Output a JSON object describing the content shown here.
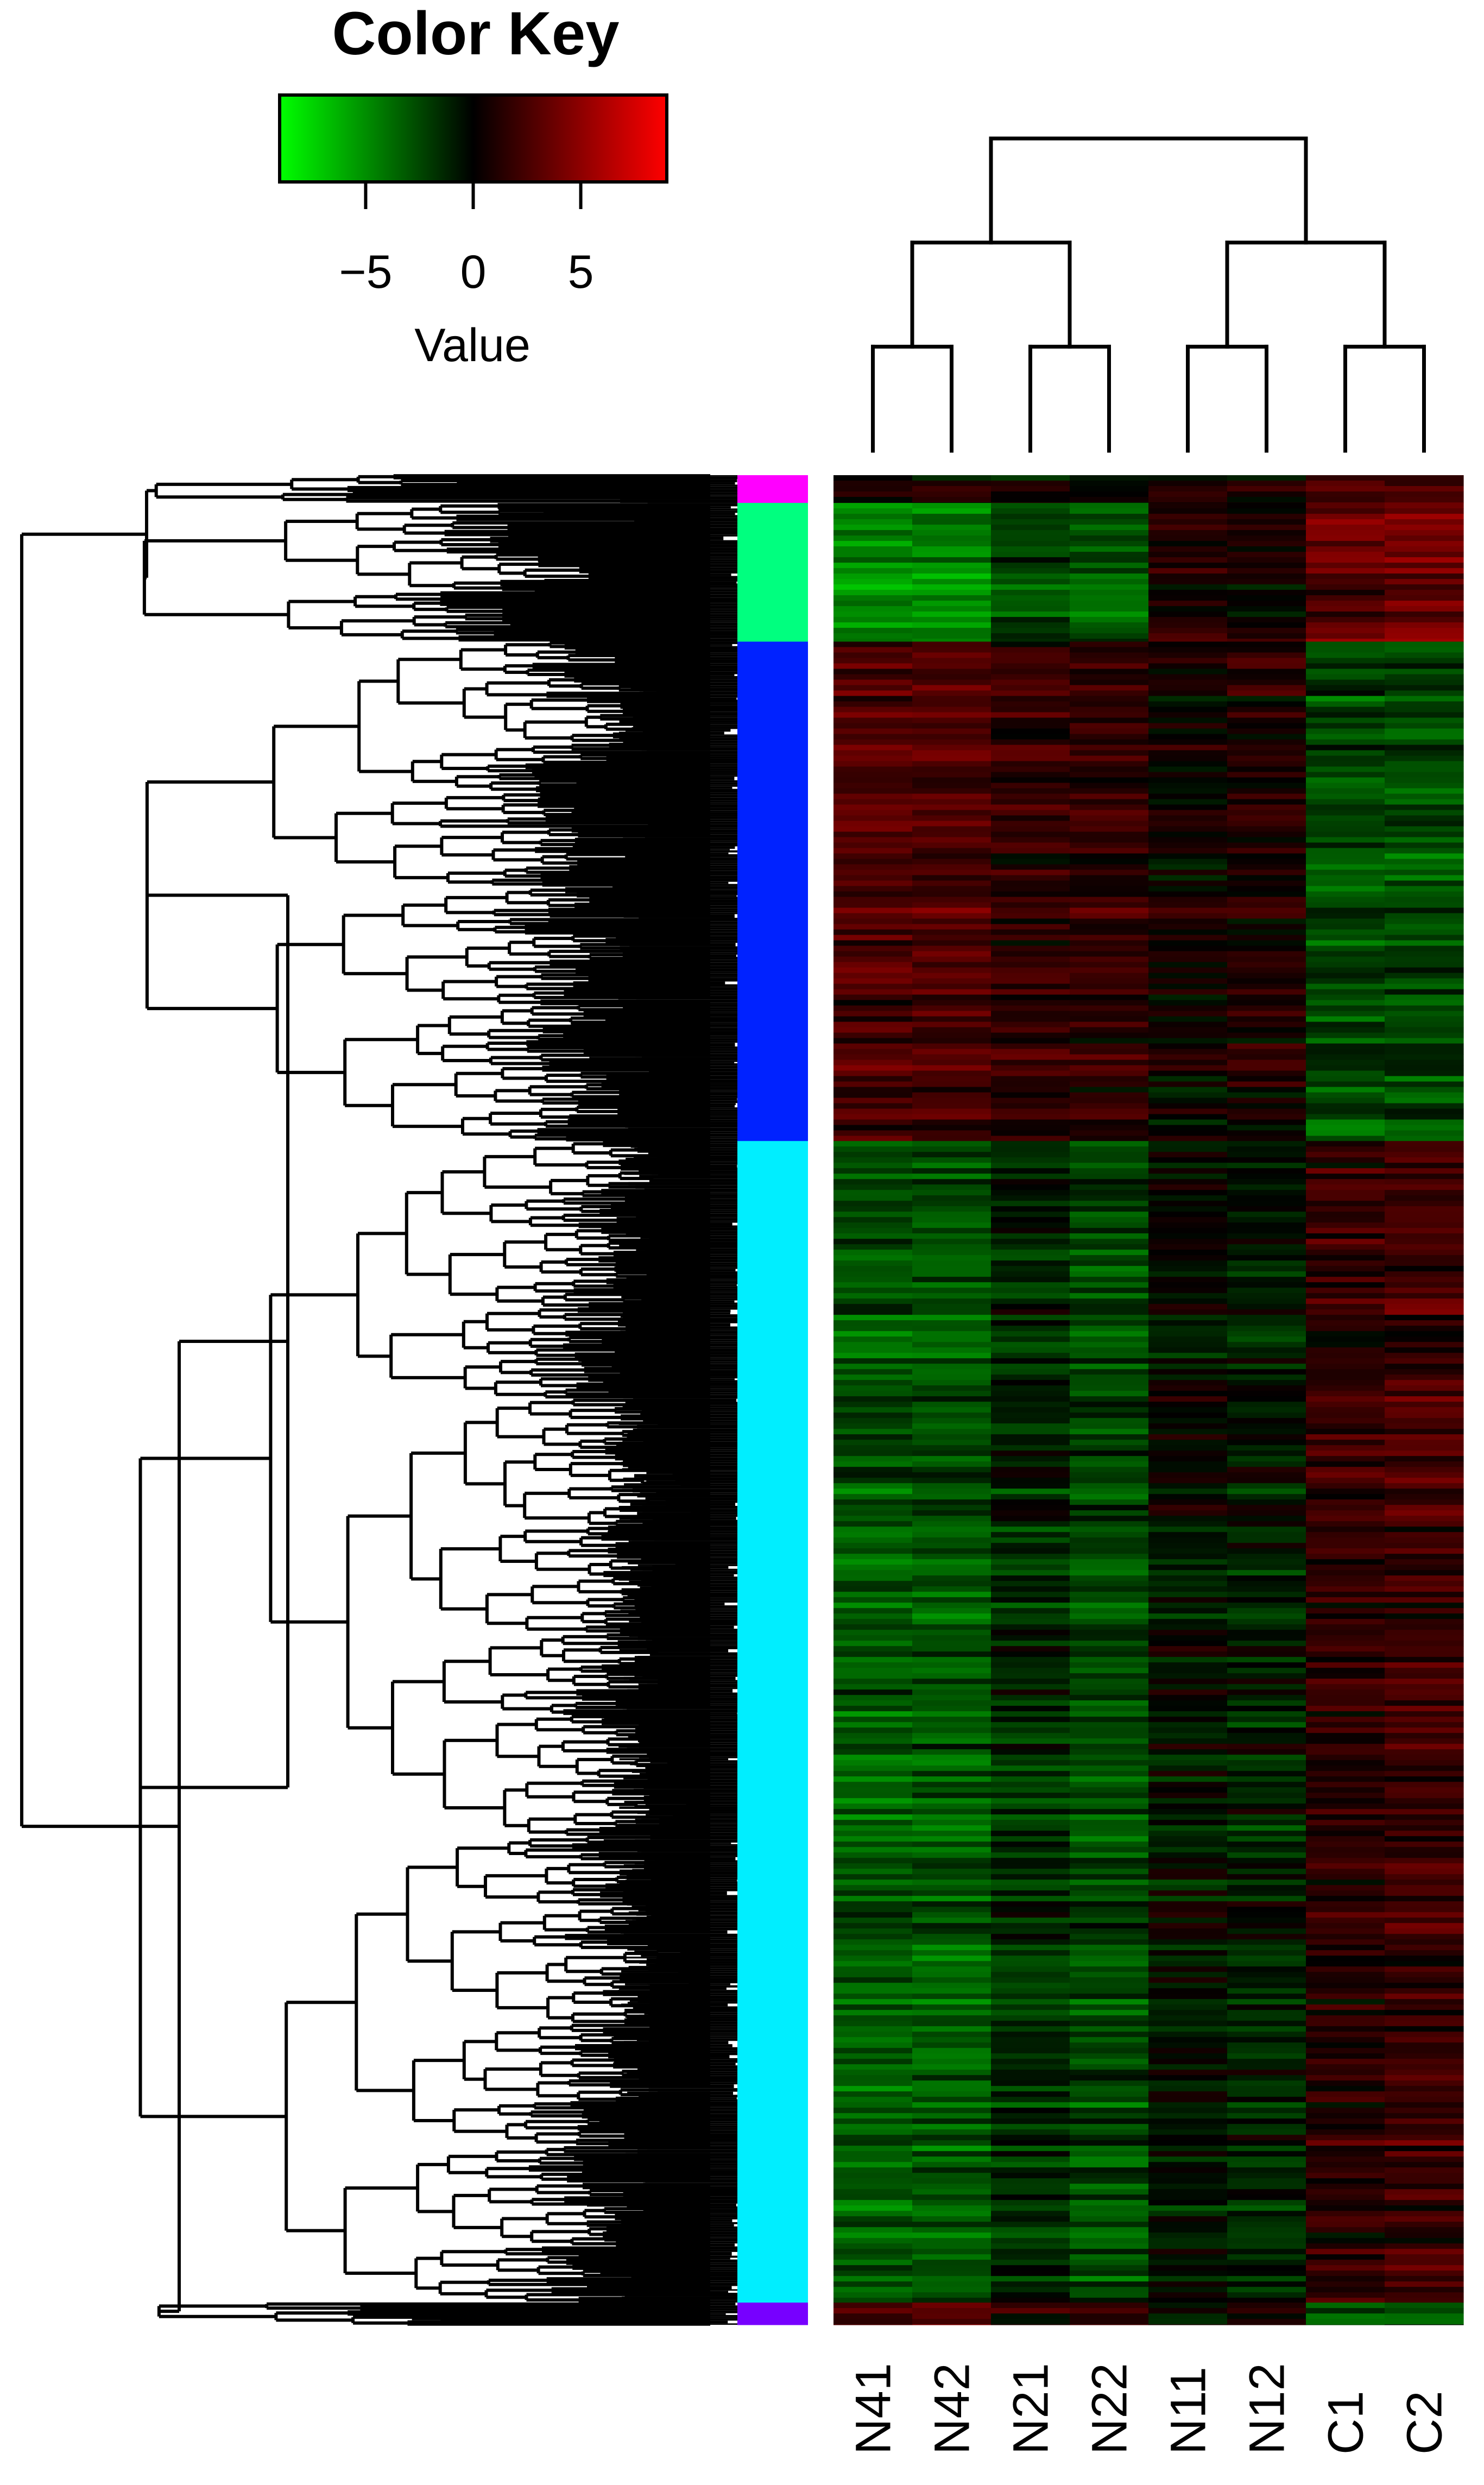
{
  "chart_data": {
    "type": "heatmap",
    "color_key": {
      "title": "Color Key",
      "xlabel": "Value",
      "ticks": [
        "−5",
        "0",
        "5"
      ],
      "tick_values": [
        -5,
        0,
        5
      ],
      "range": [
        -9,
        9
      ],
      "colors": {
        "low": "#00ff00",
        "mid": "#000000",
        "high": "#ff0000"
      }
    },
    "columns": [
      "N41",
      "N42",
      "N21",
      "N22",
      "N11",
      "N12",
      "C1",
      "C2"
    ],
    "column_dendrogram": "(((N41,N42),(N21,N22)),((N11,N12),(C1,C2)))",
    "row_clusters": [
      {
        "color": "#ff00ff",
        "fraction": 0.015
      },
      {
        "color": "#00ff7f",
        "fraction": 0.075
      },
      {
        "color": "#0022ff",
        "fraction": 0.27
      },
      {
        "color": "#00eeff",
        "fraction": 0.628
      },
      {
        "color": "#7700ff",
        "fraction": 0.012
      }
    ],
    "block_means": [
      [
        0.5,
        0.5,
        0.2,
        0.2,
        0.8,
        0.8,
        2.5,
        2.5
      ],
      [
        -5.0,
        -5.0,
        -2.5,
        -3.5,
        1.0,
        0.5,
        3.0,
        3.5
      ],
      [
        2.5,
        2.5,
        1.5,
        1.5,
        0.3,
        0.8,
        -2.5,
        -2.5
      ],
      [
        -3.0,
        -3.0,
        -1.5,
        -2.5,
        -0.5,
        -1.0,
        1.5,
        2.0
      ],
      [
        3.0,
        3.0,
        1.5,
        1.5,
        0.5,
        1.5,
        -2.5,
        -2.5
      ]
    ]
  }
}
